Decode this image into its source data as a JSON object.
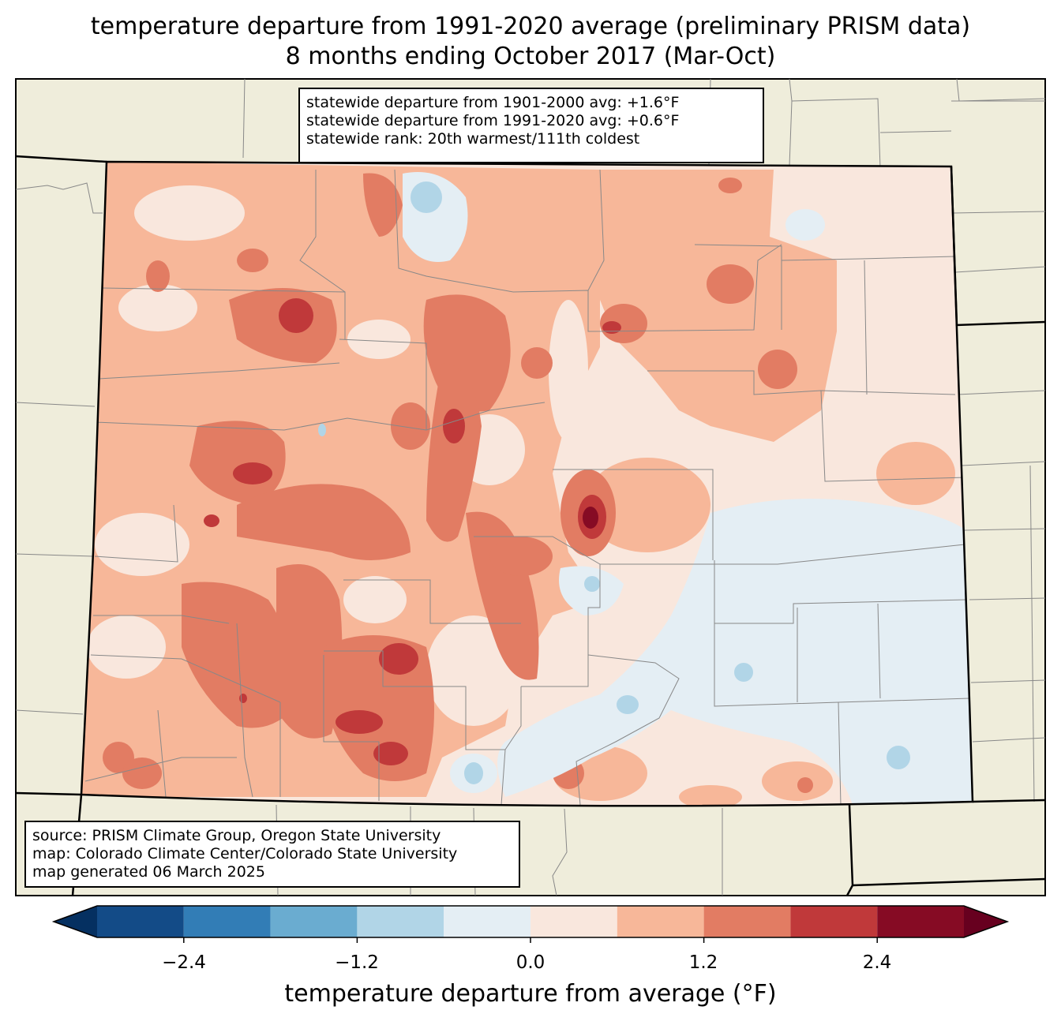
{
  "title": {
    "line1": "temperature departure from 1991-2020 average (preliminary PRISM data)",
    "line2": "8 months ending October 2017 (Mar-Oct)"
  },
  "stats": {
    "line1": "statewide departure from 1901-2000 avg: +1.6°F",
    "line2": "statewide departure from 1991-2020 avg: +0.6°F",
    "line3": "statewide rank: 20th warmest/111th coldest"
  },
  "source": {
    "line1": "source: PRISM Climate Group, Oregon State University",
    "line2": "map: Colorado Climate Center/Colorado State University",
    "line3": "map generated 06 March 2025"
  },
  "colorbar": {
    "label": "temperature departure from average (°F)",
    "ticks": [
      "−2.4",
      "−1.2",
      "0.0",
      "1.2",
      "2.4"
    ],
    "levels": [
      -3.0,
      -2.4,
      -1.8,
      -1.2,
      -0.6,
      0.0,
      0.6,
      1.2,
      1.8,
      2.4,
      3.0
    ],
    "colors": [
      "#053061",
      "#134b87",
      "#327db6",
      "#6aacd0",
      "#b1d5e7",
      "#e4eef4",
      "#f9e7dd",
      "#f7b799",
      "#e27c63",
      "#c0393a",
      "#860b24",
      "#67001f"
    ]
  },
  "map_colors": {
    "land": "#efeddb",
    "border": "#000000",
    "county": "#888888"
  }
}
